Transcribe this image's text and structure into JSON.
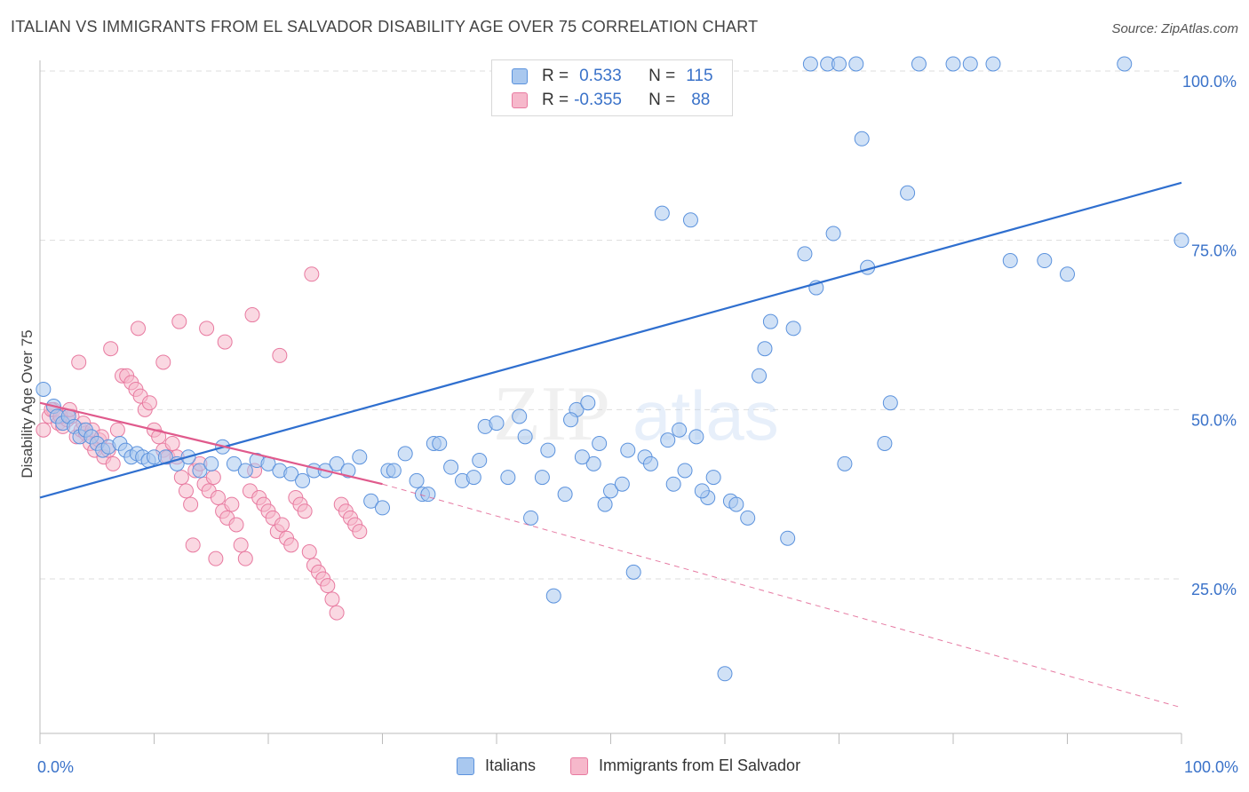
{
  "header": {
    "title": "ITALIAN VS IMMIGRANTS FROM EL SALVADOR DISABILITY AGE OVER 75 CORRELATION CHART",
    "source": "Source: ZipAtlas.com"
  },
  "watermark": {
    "zip": "ZIP",
    "atlas": "atlas"
  },
  "legend_stats": [
    {
      "r_label": "R =",
      "r_value": "0.533",
      "n_label": "N =",
      "n_value": "115"
    },
    {
      "r_label": "R =",
      "r_value": "-0.355",
      "n_label": "N =",
      "n_value": "88"
    }
  ],
  "colors": {
    "blue_fill": "#a9c8ef",
    "blue_stroke": "#5b92dd",
    "blue_line": "#2f6fcf",
    "pink_fill": "#f6b8cb",
    "pink_stroke": "#e87aa0",
    "pink_line": "#e05a8c",
    "tick_label": "#3a72c9",
    "grid": "#dddddd"
  },
  "chart_data": {
    "type": "scatter",
    "title": "ITALIAN VS IMMIGRANTS FROM EL SALVADOR DISABILITY AGE OVER 75 CORRELATION CHART",
    "xlabel": "",
    "ylabel": "Disability Age Over 75",
    "xlim": [
      0,
      100
    ],
    "ylim": [
      0,
      105
    ],
    "x_tick_labels": [
      "0.0%",
      "100.0%"
    ],
    "y_ticks": [
      25,
      50,
      75,
      100
    ],
    "y_tick_labels": [
      "25.0%",
      "50.0%",
      "75.0%",
      "100.0%"
    ],
    "grid": true,
    "legend_position": "bottom",
    "series": [
      {
        "name": "Italians",
        "r": 0.533,
        "n": 115,
        "trend": {
          "x": [
            0,
            100
          ],
          "y": [
            37.0,
            83.5
          ]
        },
        "points": [
          [
            0.3,
            53
          ],
          [
            1.2,
            50.5
          ],
          [
            1.5,
            49
          ],
          [
            2.0,
            48
          ],
          [
            2.5,
            49
          ],
          [
            3.0,
            47.5
          ],
          [
            3.5,
            46
          ],
          [
            4.0,
            47
          ],
          [
            4.5,
            46
          ],
          [
            5.0,
            45
          ],
          [
            5.5,
            44
          ],
          [
            6.0,
            44.5
          ],
          [
            7.0,
            45
          ],
          [
            7.5,
            44
          ],
          [
            8.0,
            43
          ],
          [
            8.5,
            43.5
          ],
          [
            9.0,
            43
          ],
          [
            9.5,
            42.5
          ],
          [
            10.0,
            43
          ],
          [
            11.0,
            43
          ],
          [
            12.0,
            42
          ],
          [
            13.0,
            43
          ],
          [
            14.0,
            41
          ],
          [
            15.0,
            42
          ],
          [
            16.0,
            44.5
          ],
          [
            17.0,
            42
          ],
          [
            18.0,
            41
          ],
          [
            19.0,
            42.5
          ],
          [
            20.0,
            42
          ],
          [
            21.0,
            41
          ],
          [
            22.0,
            40.5
          ],
          [
            23.0,
            39.5
          ],
          [
            24.0,
            41
          ],
          [
            25.0,
            41
          ],
          [
            26.0,
            42
          ],
          [
            27.0,
            41
          ],
          [
            28.0,
            43
          ],
          [
            29.0,
            36.5
          ],
          [
            30.0,
            35.5
          ],
          [
            30.5,
            41
          ],
          [
            31.0,
            41
          ],
          [
            32.0,
            43.5
          ],
          [
            33.0,
            39.5
          ],
          [
            33.5,
            37.5
          ],
          [
            34.0,
            37.5
          ],
          [
            34.5,
            45
          ],
          [
            35.0,
            45
          ],
          [
            36.0,
            41.5
          ],
          [
            37.0,
            39.5
          ],
          [
            38.0,
            40
          ],
          [
            38.5,
            42.5
          ],
          [
            39.0,
            47.5
          ],
          [
            40.0,
            48
          ],
          [
            41.0,
            40
          ],
          [
            42.0,
            49
          ],
          [
            43.0,
            34
          ],
          [
            44.0,
            40
          ],
          [
            45.0,
            22.5
          ],
          [
            46.0,
            37.5
          ],
          [
            47.0,
            50
          ],
          [
            48.0,
            51
          ],
          [
            48.5,
            42
          ],
          [
            49.5,
            36
          ],
          [
            50.0,
            38
          ],
          [
            51.0,
            39
          ],
          [
            52.0,
            26
          ],
          [
            53.0,
            43
          ],
          [
            54.5,
            79
          ],
          [
            55.0,
            45.5
          ],
          [
            56.0,
            47
          ],
          [
            57.0,
            78
          ],
          [
            57.5,
            46
          ],
          [
            60.0,
            11
          ],
          [
            62.0,
            34
          ],
          [
            63.0,
            55
          ],
          [
            64.0,
            63
          ],
          [
            65.5,
            31
          ],
          [
            67.0,
            73
          ],
          [
            67.5,
            105
          ],
          [
            69.0,
            105
          ],
          [
            70.0,
            105
          ],
          [
            71.5,
            106
          ],
          [
            72.0,
            90
          ],
          [
            74.5,
            51
          ],
          [
            77.0,
            105
          ],
          [
            80.0,
            105
          ],
          [
            81.5,
            105
          ],
          [
            83.5,
            105
          ],
          [
            95.0,
            105
          ],
          [
            100.0,
            75
          ],
          [
            55.5,
            39
          ],
          [
            58.5,
            37
          ],
          [
            60.5,
            36.5
          ],
          [
            61.0,
            36
          ],
          [
            63.5,
            59
          ],
          [
            66.0,
            62
          ],
          [
            68.0,
            68
          ],
          [
            69.5,
            76
          ],
          [
            70.5,
            42
          ],
          [
            72.5,
            71
          ],
          [
            74.0,
            45
          ],
          [
            76.0,
            82
          ],
          [
            85.0,
            72
          ],
          [
            88.0,
            72
          ],
          [
            90.0,
            70
          ],
          [
            42.5,
            46
          ],
          [
            44.5,
            44
          ],
          [
            46.5,
            48.5
          ],
          [
            47.5,
            43
          ],
          [
            49.0,
            45
          ],
          [
            51.5,
            44
          ],
          [
            53.5,
            42
          ],
          [
            56.5,
            41
          ],
          [
            58.0,
            38
          ],
          [
            59.0,
            40
          ]
        ]
      },
      {
        "name": "Immigrants from El Salvador",
        "r": -0.355,
        "n": 88,
        "trend": {
          "x": [
            0,
            30
          ],
          "y": [
            51.0,
            39.0
          ]
        },
        "trend_dashed": {
          "x": [
            30,
            100
          ],
          "y": [
            39.0,
            6.0
          ]
        },
        "points": [
          [
            0.3,
            47
          ],
          [
            0.8,
            49
          ],
          [
            1.2,
            50
          ],
          [
            1.6,
            48
          ],
          [
            2.0,
            47.5
          ],
          [
            2.4,
            48.5
          ],
          [
            2.8,
            49
          ],
          [
            3.2,
            46
          ],
          [
            3.6,
            47
          ],
          [
            4.0,
            46.5
          ],
          [
            4.4,
            45
          ],
          [
            4.8,
            44
          ],
          [
            5.2,
            45.5
          ],
          [
            5.6,
            43
          ],
          [
            6.0,
            44
          ],
          [
            6.4,
            42
          ],
          [
            6.8,
            47
          ],
          [
            7.2,
            55
          ],
          [
            7.6,
            55
          ],
          [
            8.0,
            54
          ],
          [
            8.4,
            53
          ],
          [
            8.8,
            52
          ],
          [
            9.2,
            50
          ],
          [
            9.6,
            51
          ],
          [
            10.0,
            47
          ],
          [
            10.4,
            46
          ],
          [
            10.8,
            44
          ],
          [
            11.2,
            43
          ],
          [
            11.6,
            45
          ],
          [
            12.0,
            43
          ],
          [
            12.4,
            40
          ],
          [
            12.8,
            38
          ],
          [
            13.2,
            36
          ],
          [
            13.6,
            41
          ],
          [
            14.0,
            42
          ],
          [
            14.4,
            39
          ],
          [
            14.8,
            38
          ],
          [
            15.2,
            40
          ],
          [
            15.6,
            37
          ],
          [
            16.0,
            35
          ],
          [
            16.4,
            34
          ],
          [
            16.8,
            36
          ],
          [
            17.2,
            33
          ],
          [
            17.6,
            30
          ],
          [
            18.0,
            28
          ],
          [
            18.4,
            38
          ],
          [
            18.8,
            41
          ],
          [
            19.2,
            37
          ],
          [
            19.6,
            36
          ],
          [
            20.0,
            35
          ],
          [
            20.4,
            34
          ],
          [
            20.8,
            32
          ],
          [
            21.2,
            33
          ],
          [
            21.6,
            31
          ],
          [
            22.0,
            30
          ],
          [
            22.4,
            37
          ],
          [
            22.8,
            36
          ],
          [
            23.2,
            35
          ],
          [
            23.6,
            29
          ],
          [
            24.0,
            27
          ],
          [
            24.4,
            26
          ],
          [
            24.8,
            25
          ],
          [
            25.2,
            24
          ],
          [
            25.6,
            22
          ],
          [
            26.0,
            20
          ],
          [
            26.4,
            36
          ],
          [
            26.8,
            35
          ],
          [
            27.2,
            34
          ],
          [
            27.6,
            33
          ],
          [
            28.0,
            32
          ],
          [
            3.4,
            57
          ],
          [
            6.2,
            59
          ],
          [
            8.6,
            62
          ],
          [
            10.8,
            57
          ],
          [
            12.2,
            63
          ],
          [
            14.6,
            62
          ],
          [
            16.2,
            60
          ],
          [
            18.6,
            64
          ],
          [
            21.0,
            58
          ],
          [
            23.8,
            70
          ],
          [
            1.0,
            50
          ],
          [
            1.8,
            49
          ],
          [
            2.6,
            50
          ],
          [
            3.8,
            48
          ],
          [
            4.6,
            47
          ],
          [
            5.4,
            46
          ],
          [
            13.4,
            30
          ],
          [
            15.4,
            28
          ]
        ]
      }
    ]
  },
  "bottom_legend": {
    "items": [
      {
        "label": "Italians"
      },
      {
        "label": "Immigrants from El Salvador"
      }
    ]
  }
}
